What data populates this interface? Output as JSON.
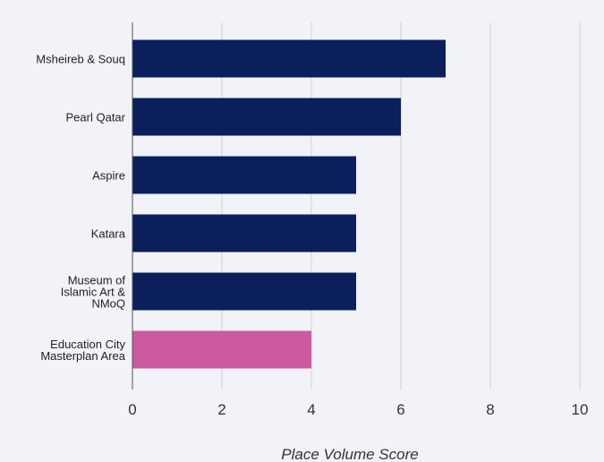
{
  "chart_data": {
    "type": "bar",
    "orientation": "horizontal",
    "categories": [
      "Msheireb & Souq",
      "Pearl Qatar",
      "Aspire",
      "Katara",
      "Museum of Islamic Art & NMoQ",
      "Education City Masterplan Area"
    ],
    "values": [
      7,
      6,
      5,
      5,
      5,
      4
    ],
    "colors": [
      "#0b1f5c",
      "#0b1f5c",
      "#0b1f5c",
      "#0b1f5c",
      "#0b1f5c",
      "#cc5a9f"
    ],
    "xlabel": "Place Volume Score",
    "xlim": [
      0,
      10
    ],
    "xticks": [
      0,
      2,
      4,
      6,
      8,
      10
    ],
    "grid": true
  }
}
